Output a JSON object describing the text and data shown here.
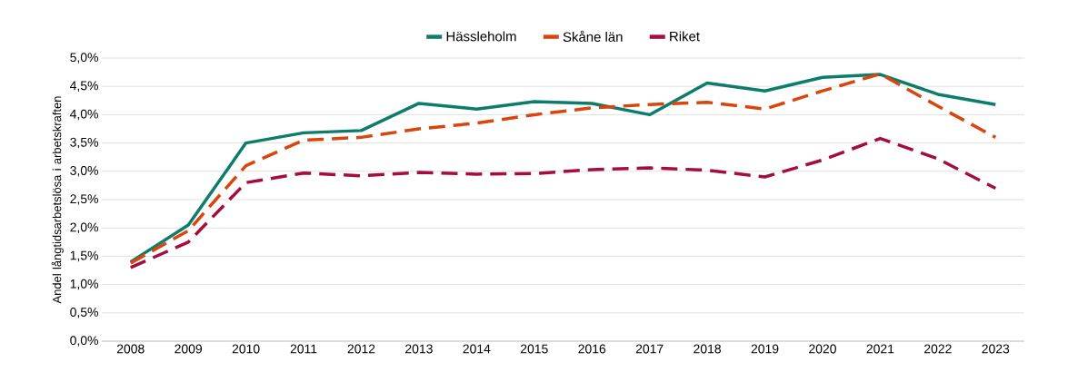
{
  "chart_data": {
    "type": "line",
    "ylabel": "Andel långtidsarbetslösa i arbetskraften",
    "categories": [
      "2008",
      "2009",
      "2010",
      "2011",
      "2012",
      "2013",
      "2014",
      "2015",
      "2016",
      "2017",
      "2018",
      "2019",
      "2020",
      "2021",
      "2022",
      "2023"
    ],
    "series": [
      {
        "name": "Hässleholm",
        "color": "#0e7c6b",
        "line_style": "solid",
        "values": [
          1.4,
          2.05,
          3.5,
          3.68,
          3.72,
          4.2,
          4.1,
          4.23,
          4.2,
          4.0,
          4.56,
          4.42,
          4.66,
          4.71,
          4.36,
          4.18
        ]
      },
      {
        "name": "Skåne län",
        "color": "#d9450f",
        "line_style": "dashed",
        "values": [
          1.38,
          1.95,
          3.1,
          3.55,
          3.6,
          3.75,
          3.85,
          4.0,
          4.12,
          4.18,
          4.22,
          4.1,
          4.42,
          4.72,
          4.15,
          3.6
        ]
      },
      {
        "name": "Riket",
        "color": "#a50d3e",
        "line_style": "dashed",
        "values": [
          1.3,
          1.75,
          2.8,
          2.97,
          2.92,
          2.98,
          2.95,
          2.96,
          3.03,
          3.06,
          3.02,
          2.9,
          3.2,
          3.58,
          3.22,
          2.7
        ]
      }
    ],
    "ylim": [
      0,
      5
    ],
    "yticks": [
      {
        "value": 0,
        "label": "0,0%"
      },
      {
        "value": 0.5,
        "label": "0,5%"
      },
      {
        "value": 1,
        "label": "1,0%"
      },
      {
        "value": 1.5,
        "label": "1,5%"
      },
      {
        "value": 2,
        "label": "2,0%"
      },
      {
        "value": 2.5,
        "label": "2,5%"
      },
      {
        "value": 3,
        "label": "3,0%"
      },
      {
        "value": 3.5,
        "label": "3,5%"
      },
      {
        "value": 4,
        "label": "4,0%"
      },
      {
        "value": 4.5,
        "label": "4,5%"
      },
      {
        "value": 5,
        "label": "5,0%"
      }
    ],
    "grid": "y",
    "legend": "top",
    "marker": "none"
  }
}
